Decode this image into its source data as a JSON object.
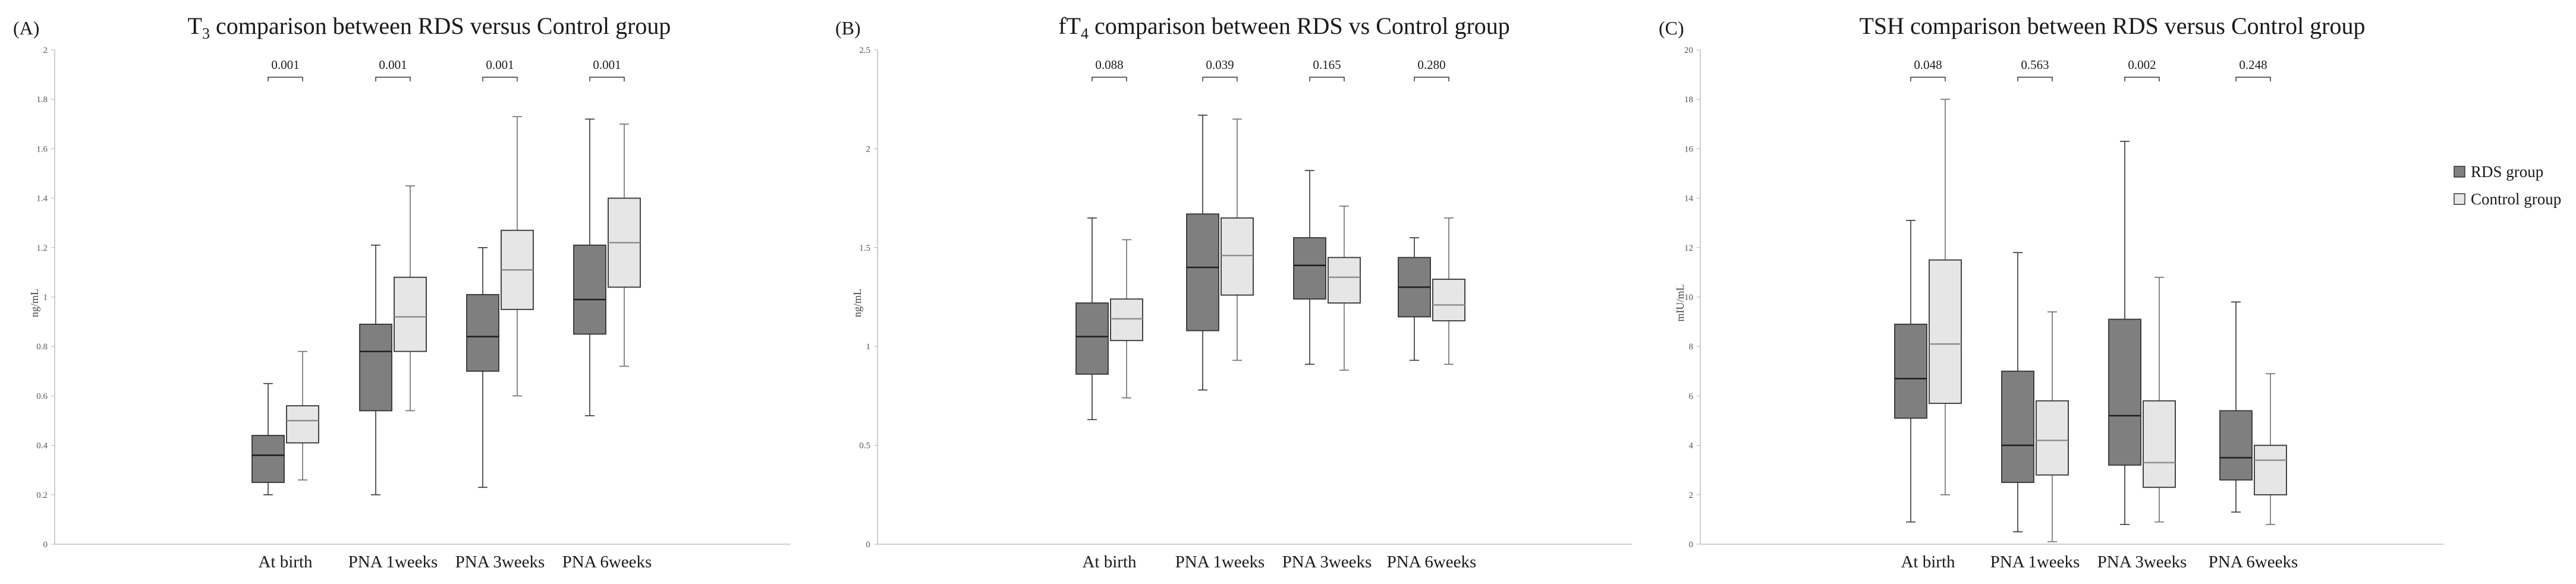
{
  "colors": {
    "rds": "#7f7f7f",
    "control": "#e6e6e6",
    "axis": "#bfbfbf",
    "median_rds": "#1a1a1a",
    "median_control": "#8c8c8c"
  },
  "legend": {
    "rds": "RDS group",
    "control": "Control group"
  },
  "chart_data": [
    {
      "type": "boxplot",
      "panel": "(A)",
      "title_main": "T",
      "title_sub": "3",
      "title_rest": " comparison between RDS versus Control group",
      "ylabel": "ng/mL",
      "ylim": [
        0,
        2
      ],
      "yticks": [
        0,
        0.2,
        0.4,
        0.6,
        0.8,
        1,
        1.2,
        1.4,
        1.6,
        1.8,
        2
      ],
      "ytick_labels": [
        "0",
        "0.2",
        "0.4",
        "0.6",
        "0.8",
        "1",
        "1.2",
        "1.4",
        "1.6",
        "1.8",
        "2"
      ],
      "categories": [
        "At birth",
        "PNA 1weeks",
        "PNA 3weeks",
        "PNA 6weeks"
      ],
      "pvalues": [
        "0.001",
        "0.001",
        "0.001",
        "0.001"
      ],
      "series": [
        {
          "name": "RDS group",
          "boxes": [
            {
              "min": 0.2,
              "q1": 0.25,
              "median": 0.36,
              "q3": 0.44,
              "max": 0.65
            },
            {
              "min": 0.2,
              "q1": 0.54,
              "median": 0.78,
              "q3": 0.89,
              "max": 1.21
            },
            {
              "min": 0.23,
              "q1": 0.7,
              "median": 0.84,
              "q3": 1.01,
              "max": 1.2
            },
            {
              "min": 0.52,
              "q1": 0.85,
              "median": 0.99,
              "q3": 1.21,
              "max": 1.72
            }
          ]
        },
        {
          "name": "Control group",
          "boxes": [
            {
              "min": 0.26,
              "q1": 0.41,
              "median": 0.5,
              "q3": 0.56,
              "max": 0.78
            },
            {
              "min": 0.54,
              "q1": 0.78,
              "median": 0.92,
              "q3": 1.08,
              "max": 1.45
            },
            {
              "min": 0.6,
              "q1": 0.95,
              "median": 1.11,
              "q3": 1.27,
              "max": 1.73
            },
            {
              "min": 0.72,
              "q1": 1.04,
              "median": 1.22,
              "q3": 1.4,
              "max": 1.7
            }
          ]
        }
      ]
    },
    {
      "type": "boxplot",
      "panel": "(B)",
      "title_main": "fT",
      "title_sub": "4",
      "title_rest": " comparison between RDS vs Control group",
      "ylabel": "ng/mL",
      "ylim": [
        0,
        2.5
      ],
      "yticks": [
        0,
        0.5,
        1,
        1.5,
        2,
        2.5
      ],
      "ytick_labels": [
        "0",
        "0.5",
        "1",
        "1.5",
        "2",
        "2.5"
      ],
      "categories": [
        "At birth",
        "PNA 1weeks",
        "PNA 3weeks",
        "PNA 6weeks"
      ],
      "pvalues": [
        "0.088",
        "0.039",
        "0.165",
        "0.280"
      ],
      "series": [
        {
          "name": "RDS group",
          "boxes": [
            {
              "min": 0.63,
              "q1": 0.86,
              "median": 1.05,
              "q3": 1.22,
              "max": 1.65
            },
            {
              "min": 0.78,
              "q1": 1.08,
              "median": 1.4,
              "q3": 1.67,
              "max": 2.17
            },
            {
              "min": 0.91,
              "q1": 1.24,
              "median": 1.41,
              "q3": 1.55,
              "max": 1.89
            },
            {
              "min": 0.93,
              "q1": 1.15,
              "median": 1.3,
              "q3": 1.45,
              "max": 1.55
            }
          ]
        },
        {
          "name": "Control group",
          "boxes": [
            {
              "min": 0.74,
              "q1": 1.03,
              "median": 1.14,
              "q3": 1.24,
              "max": 1.54
            },
            {
              "min": 0.93,
              "q1": 1.26,
              "median": 1.46,
              "q3": 1.65,
              "max": 2.15
            },
            {
              "min": 0.88,
              "q1": 1.22,
              "median": 1.35,
              "q3": 1.45,
              "max": 1.71
            },
            {
              "min": 0.91,
              "q1": 1.13,
              "median": 1.21,
              "q3": 1.34,
              "max": 1.65
            }
          ]
        }
      ]
    },
    {
      "type": "boxplot",
      "panel": "(C)",
      "title_main": "TSH comparison between RDS versus Control group",
      "title_sub": "",
      "title_rest": "",
      "ylabel": "mIU/mL",
      "ylim": [
        0,
        20
      ],
      "yticks": [
        0,
        2,
        4,
        6,
        8,
        10,
        12,
        14,
        16,
        18,
        20
      ],
      "ytick_labels": [
        "0",
        "2",
        "4",
        "6",
        "8",
        "10",
        "12",
        "14",
        "16",
        "18",
        "20"
      ],
      "categories": [
        "At birth",
        "PNA 1weeks",
        "PNA 3weeks",
        "PNA 6weeks"
      ],
      "pvalues": [
        "0.048",
        "0.563",
        "0.002",
        "0.248"
      ],
      "series": [
        {
          "name": "RDS group",
          "boxes": [
            {
              "min": 0.9,
              "q1": 5.1,
              "median": 6.7,
              "q3": 8.9,
              "max": 13.1
            },
            {
              "min": 0.5,
              "q1": 2.5,
              "median": 4.0,
              "q3": 7.0,
              "max": 11.8
            },
            {
              "min": 0.8,
              "q1": 3.2,
              "median": 5.2,
              "q3": 9.1,
              "max": 16.3
            },
            {
              "min": 1.3,
              "q1": 2.6,
              "median": 3.5,
              "q3": 5.4,
              "max": 9.8
            }
          ]
        },
        {
          "name": "Control group",
          "boxes": [
            {
              "min": 2.0,
              "q1": 5.7,
              "median": 8.1,
              "q3": 11.5,
              "max": 18.0
            },
            {
              "min": 0.1,
              "q1": 2.8,
              "median": 4.2,
              "q3": 5.8,
              "max": 9.4
            },
            {
              "min": 0.9,
              "q1": 2.3,
              "median": 3.3,
              "q3": 5.8,
              "max": 10.8
            },
            {
              "min": 0.8,
              "q1": 2.0,
              "median": 3.4,
              "q3": 4.0,
              "max": 6.9
            }
          ]
        }
      ]
    }
  ]
}
